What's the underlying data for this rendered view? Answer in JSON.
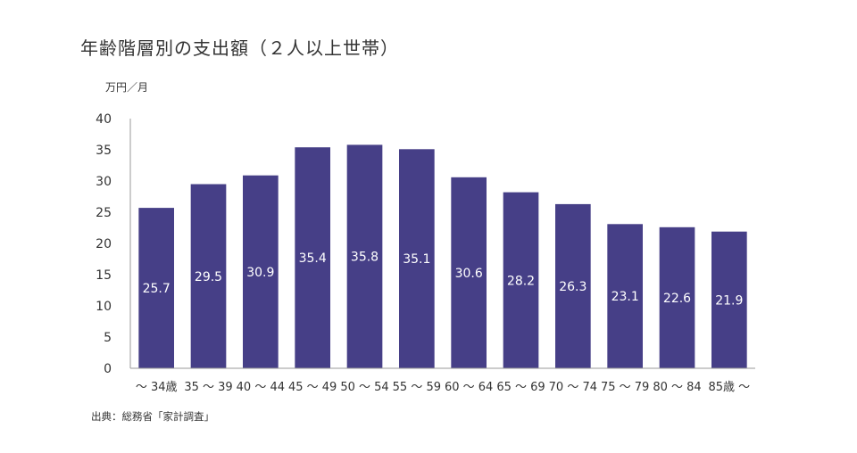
{
  "chart_data": {
    "type": "bar",
    "title": "年齢階層別の支出額（２人以上世帯）",
    "unit_label": "万円／月",
    "source": "出典：総務省「家計調査」",
    "categories": [
      "～ 34歳",
      "35 ～ 39",
      "40 ～ 44",
      "45 ～ 49",
      "50 ～ 54",
      "55 ～ 59",
      "60 ～ 64",
      "65 ～ 69",
      "70 ～ 74",
      "75 ～ 79",
      "80 ～ 84",
      "85歳 ～"
    ],
    "values": [
      25.7,
      29.5,
      30.9,
      35.4,
      35.8,
      35.1,
      30.6,
      28.2,
      26.3,
      23.1,
      22.6,
      21.9
    ],
    "data_labels": [
      "25.7",
      "29.5",
      "30.9",
      "35.4",
      "35.8",
      "35.1",
      "30.6",
      "28.2",
      "26.3",
      "23.1",
      "22.6",
      "21.9"
    ],
    "ylim": [
      0,
      40
    ],
    "yticks": [
      "0",
      "5",
      "10",
      "15",
      "20",
      "25",
      "30",
      "35",
      "40"
    ],
    "grid": false,
    "bar_color": "#463f87",
    "axis_color": "#9a9a9a"
  }
}
